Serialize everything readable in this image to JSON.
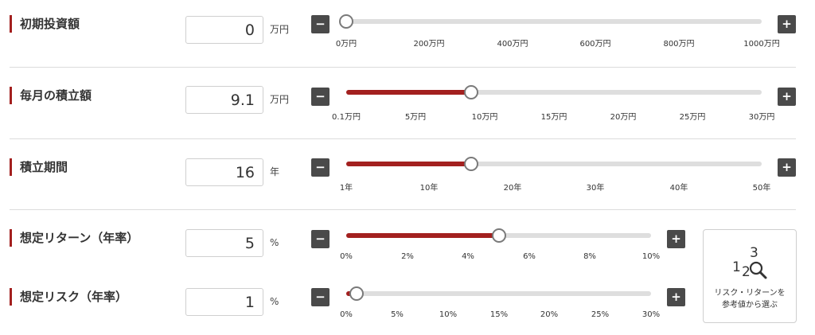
{
  "colors": {
    "accent": "#a3201f",
    "track": "#dedede",
    "button": "#4a4a4a"
  },
  "rows": [
    {
      "label": "初期投資額",
      "value": "0",
      "unit": "万円",
      "minus": "−",
      "plus": "+",
      "level": 0,
      "ticks": [
        "0万円",
        "200万円",
        "400万円",
        "600万円",
        "800万円",
        "1000万円"
      ]
    },
    {
      "label": "毎月の積立額",
      "value": "9.1",
      "unit": "万円",
      "minus": "−",
      "plus": "+",
      "level": 0.3,
      "ticks": [
        "0.1万円",
        "5万円",
        "10万円",
        "15万円",
        "20万円",
        "25万円",
        "30万円"
      ]
    },
    {
      "label": "積立期間",
      "value": "16",
      "unit": "年",
      "minus": "−",
      "plus": "+",
      "level": 0.3,
      "ticks": [
        "1年",
        "10年",
        "20年",
        "30年",
        "40年",
        "50年"
      ]
    },
    {
      "label": "想定リターン（年率）",
      "value": "5",
      "unit": "%",
      "minus": "−",
      "plus": "+",
      "level": 0.5,
      "ticks": [
        "0%",
        "2%",
        "4%",
        "6%",
        "8%",
        "10%"
      ]
    },
    {
      "label": "想定リスク（年率）",
      "value": "1",
      "unit": "%",
      "minus": "−",
      "plus": "+",
      "level": 0.033,
      "ticks": [
        "0%",
        "5%",
        "10%",
        "15%",
        "20%",
        "25%",
        "30%"
      ]
    }
  ],
  "helper": {
    "icon": "numbers-magnifier-icon",
    "line1": "リスク・リターンを",
    "line2": "参考値から選ぶ"
  }
}
